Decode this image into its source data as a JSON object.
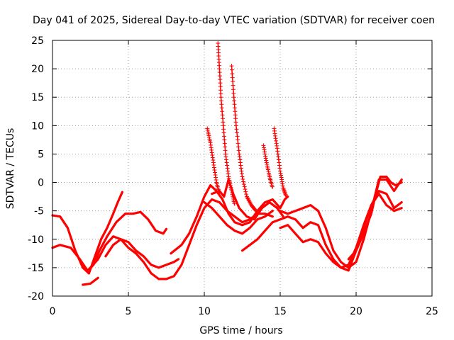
{
  "chart_data": {
    "type": "scatter",
    "title": "Day 041 of 2025, Sidereal Day-to-day VTEC variation (SDTVAR) for receiver coen",
    "xlabel": "GPS time / hours",
    "ylabel": "SDTVAR / TECUs",
    "xlim": [
      0,
      25
    ],
    "ylim": [
      -20,
      25
    ],
    "xticks": [
      "0",
      "5",
      "10",
      "15",
      "20",
      "25"
    ],
    "yticks": [
      "-20",
      "-15",
      "-10",
      "-5",
      "0",
      "5",
      "10",
      "15",
      "20",
      "25"
    ],
    "grid": true,
    "marker": "plus",
    "color": "#ff0000",
    "series": [
      {
        "name": "trace-1",
        "points": [
          [
            0,
            -5.8
          ],
          [
            0.5,
            -6.0
          ],
          [
            1.0,
            -8.0
          ],
          [
            1.5,
            -12.0
          ],
          [
            2.0,
            -15.0
          ],
          [
            2.4,
            -16.0
          ],
          [
            2.8,
            -13.0
          ],
          [
            3.2,
            -10.0
          ],
          [
            3.6,
            -8.0
          ],
          [
            4.0,
            -5.5
          ],
          [
            4.3,
            -3.5
          ],
          [
            4.6,
            -1.7
          ]
        ]
      },
      {
        "name": "trace-2",
        "points": [
          [
            0,
            -11.5
          ],
          [
            0.5,
            -11.0
          ],
          [
            1.2,
            -11.5
          ],
          [
            1.8,
            -13.5
          ],
          [
            2.3,
            -15.5
          ],
          [
            2.7,
            -14.5
          ],
          [
            3.1,
            -12.0
          ],
          [
            3.6,
            -9.5
          ],
          [
            4.2,
            -7.0
          ],
          [
            4.8,
            -5.5
          ],
          [
            5.3,
            -5.5
          ],
          [
            5.8,
            -5.2
          ],
          [
            6.3,
            -6.5
          ],
          [
            6.8,
            -8.5
          ],
          [
            7.3,
            -9.0
          ],
          [
            7.5,
            -8.2
          ]
        ]
      },
      {
        "name": "trace-3",
        "points": [
          [
            2.0,
            -18.0
          ],
          [
            2.5,
            -17.8
          ],
          [
            3.0,
            -16.8
          ]
        ]
      },
      {
        "name": "trace-4",
        "points": [
          [
            2.5,
            -15.0
          ],
          [
            3.0,
            -13.5
          ],
          [
            3.5,
            -11.0
          ],
          [
            4.0,
            -9.5
          ],
          [
            4.5,
            -10.0
          ],
          [
            5.0,
            -11.5
          ],
          [
            5.5,
            -12.5
          ],
          [
            6.0,
            -14.0
          ],
          [
            6.5,
            -16.0
          ],
          [
            7.0,
            -17.0
          ],
          [
            7.5,
            -17.0
          ],
          [
            8.0,
            -16.5
          ],
          [
            8.5,
            -14.5
          ],
          [
            9.0,
            -11.0
          ],
          [
            9.5,
            -7.5
          ],
          [
            10.0,
            -4.5
          ],
          [
            10.5,
            -3.0
          ],
          [
            11.0,
            -3.5
          ],
          [
            11.5,
            -5.0
          ],
          [
            12.0,
            -6.0
          ],
          [
            12.5,
            -7.0
          ],
          [
            13.0,
            -6.5
          ],
          [
            13.5,
            -5.5
          ],
          [
            14.0,
            -5.5
          ],
          [
            14.5,
            -6.0
          ]
        ]
      },
      {
        "name": "trace-5",
        "points": [
          [
            3.5,
            -13.0
          ],
          [
            4.0,
            -11.0
          ],
          [
            4.5,
            -10.0
          ],
          [
            5.0,
            -10.5
          ],
          [
            5.5,
            -12.0
          ],
          [
            6.0,
            -13.0
          ],
          [
            6.5,
            -14.5
          ],
          [
            7.0,
            -15.0
          ],
          [
            7.5,
            -14.5
          ],
          [
            8.0,
            -14.0
          ],
          [
            8.3,
            -13.5
          ]
        ]
      },
      {
        "name": "trace-6",
        "points": [
          [
            7.8,
            -12.5
          ],
          [
            8.5,
            -11.0
          ],
          [
            9.0,
            -9.0
          ],
          [
            9.5,
            -6.0
          ],
          [
            10.0,
            -2.5
          ],
          [
            10.4,
            -0.5
          ],
          [
            10.8,
            -1.5
          ],
          [
            11.2,
            -3.0
          ],
          [
            11.6,
            -5.5
          ],
          [
            12.0,
            -7.0
          ],
          [
            12.5,
            -7.5
          ],
          [
            13.0,
            -7.0
          ],
          [
            13.5,
            -5.0
          ],
          [
            14.0,
            -3.5
          ],
          [
            14.5,
            -3.0
          ],
          [
            15.0,
            -4.5
          ],
          [
            15.3,
            -3.0
          ],
          [
            15.5,
            -2.5
          ]
        ]
      },
      {
        "name": "trace-7",
        "points": [
          [
            10.0,
            -3.5
          ],
          [
            10.5,
            -4.5
          ],
          [
            11.0,
            -6.0
          ],
          [
            11.5,
            -7.5
          ],
          [
            12.0,
            -8.5
          ],
          [
            12.5,
            -9.0
          ],
          [
            13.0,
            -8.0
          ],
          [
            13.5,
            -6.5
          ],
          [
            14.0,
            -6.0
          ],
          [
            14.5,
            -5.0
          ]
        ]
      },
      {
        "name": "trace-8",
        "points": [
          [
            10.5,
            -2.0
          ],
          [
            11.0,
            -1.5
          ],
          [
            11.3,
            -2.5
          ],
          [
            11.6,
            0.5
          ],
          [
            11.9,
            -2.0
          ],
          [
            12.3,
            -4.5
          ],
          [
            12.8,
            -6.0
          ],
          [
            13.3,
            -6.5
          ],
          [
            13.8,
            -4.5
          ],
          [
            14.3,
            -3.5
          ],
          [
            14.8,
            -4.5
          ],
          [
            15.2,
            -6.0
          ]
        ]
      },
      {
        "name": "trace-9",
        "points": [
          [
            12.5,
            -12.0
          ],
          [
            13.0,
            -11.0
          ],
          [
            13.5,
            -10.0
          ],
          [
            14.0,
            -8.5
          ],
          [
            14.5,
            -7.0
          ],
          [
            15.0,
            -6.5
          ],
          [
            15.5,
            -6.0
          ],
          [
            16.0,
            -6.5
          ],
          [
            16.5,
            -8.0
          ],
          [
            17.0,
            -7.0
          ],
          [
            17.5,
            -7.5
          ],
          [
            18.0,
            -11.0
          ],
          [
            18.5,
            -13.5
          ],
          [
            19.0,
            -15.0
          ],
          [
            19.5,
            -15.5
          ],
          [
            20.0,
            -12.0
          ],
          [
            20.5,
            -8.0
          ],
          [
            21.0,
            -4.0
          ],
          [
            21.5,
            -1.5
          ],
          [
            22.0,
            -2.0
          ],
          [
            22.5,
            -4.5
          ],
          [
            23.0,
            -3.5
          ]
        ]
      },
      {
        "name": "trace-10",
        "points": [
          [
            15.0,
            -8.0
          ],
          [
            15.5,
            -7.5
          ],
          [
            16.0,
            -9.0
          ],
          [
            16.5,
            -10.5
          ],
          [
            17.0,
            -10.0
          ],
          [
            17.5,
            -10.5
          ],
          [
            18.0,
            -12.5
          ],
          [
            18.5,
            -14.0
          ],
          [
            19.0,
            -15.0
          ],
          [
            19.5,
            -14.5
          ],
          [
            20.0,
            -11.5
          ],
          [
            20.5,
            -7.5
          ],
          [
            21.0,
            -4.0
          ],
          [
            21.5,
            -2.0
          ],
          [
            22.0,
            -4.0
          ],
          [
            22.5,
            -5.0
          ],
          [
            23.0,
            -4.5
          ]
        ]
      },
      {
        "name": "trace-11",
        "points": [
          [
            15.0,
            -5.0
          ],
          [
            15.5,
            -5.5
          ],
          [
            16.0,
            -5.0
          ],
          [
            16.5,
            -4.5
          ],
          [
            17.0,
            -4.0
          ],
          [
            17.5,
            -5.0
          ],
          [
            18.0,
            -8.0
          ],
          [
            18.5,
            -12.0
          ],
          [
            19.0,
            -14.0
          ],
          [
            19.5,
            -15.0
          ],
          [
            20.0,
            -14.0
          ],
          [
            20.5,
            -10.0
          ],
          [
            21.0,
            -5.0
          ],
          [
            21.5,
            0.5
          ],
          [
            22.0,
            0.5
          ],
          [
            22.5,
            -1.5
          ],
          [
            23.0,
            0.5
          ]
        ]
      },
      {
        "name": "trace-12",
        "points": [
          [
            19.5,
            -13.5
          ],
          [
            20.0,
            -12.0
          ],
          [
            20.5,
            -9.0
          ],
          [
            21.0,
            -5.5
          ],
          [
            21.3,
            -2.0
          ],
          [
            21.6,
            1.0
          ],
          [
            22.0,
            1.0
          ],
          [
            22.3,
            0.0
          ],
          [
            22.6,
            -0.5
          ],
          [
            23.0,
            0.0
          ]
        ]
      },
      {
        "name": "spike-1",
        "points": [
          [
            10.2,
            9.5
          ],
          [
            10.4,
            7.0
          ],
          [
            10.6,
            3.5
          ],
          [
            10.8,
            0.0
          ],
          [
            11.0,
            -2.0
          ]
        ]
      },
      {
        "name": "spike-2",
        "points": [
          [
            10.9,
            24.5
          ],
          [
            11.0,
            20.0
          ],
          [
            11.1,
            15.0
          ],
          [
            11.25,
            10.0
          ],
          [
            11.4,
            5.0
          ],
          [
            11.6,
            1.0
          ],
          [
            11.8,
            -1.5
          ],
          [
            12.0,
            -4.0
          ]
        ]
      },
      {
        "name": "spike-3",
        "points": [
          [
            11.8,
            20.5
          ],
          [
            11.95,
            15.0
          ],
          [
            12.1,
            10.0
          ],
          [
            12.3,
            5.0
          ],
          [
            12.5,
            1.0
          ],
          [
            12.8,
            -2.5
          ],
          [
            13.1,
            -4.0
          ],
          [
            13.4,
            -5.0
          ]
        ]
      },
      {
        "name": "spike-4",
        "points": [
          [
            13.9,
            6.5
          ],
          [
            14.1,
            3.5
          ],
          [
            14.3,
            1.0
          ],
          [
            14.5,
            -1.0
          ]
        ]
      },
      {
        "name": "spike-5",
        "points": [
          [
            14.6,
            9.5
          ],
          [
            14.8,
            6.0
          ],
          [
            15.0,
            2.0
          ],
          [
            15.2,
            -1.0
          ],
          [
            15.4,
            -2.5
          ]
        ]
      }
    ]
  }
}
